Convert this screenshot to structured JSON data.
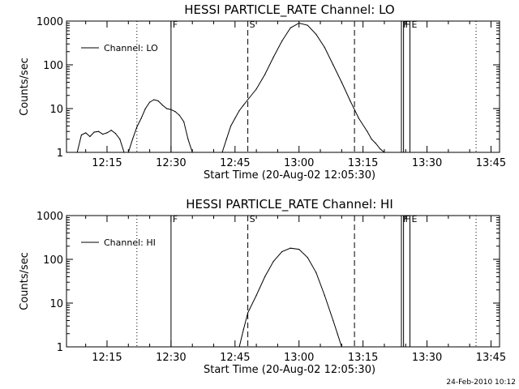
{
  "footer": {
    "stamp": "24-Feb-2010 10:12"
  },
  "chart_data": [
    {
      "type": "line",
      "title": "HESSI PARTICLE_RATE Channel: LO",
      "xlabel": "Start Time (20-Aug-02 12:05:30)",
      "ylabel": "Counts/sec",
      "x_unit": "time (hh:mm)",
      "xlim": [
        "12:05:30",
        "13:47:00"
      ],
      "ylim": [
        1,
        1000
      ],
      "yscale": "log",
      "x_ticks": [
        "12:15",
        "12:30",
        "12:45",
        "13:00",
        "13:15",
        "13:30",
        "13:45"
      ],
      "y_ticks": [
        "1",
        "10",
        "100",
        "1000"
      ],
      "grid": false,
      "legend": {
        "position": "top-left",
        "entries": [
          "Channel: LO"
        ]
      },
      "series": [
        {
          "name": "Channel: LO",
          "x": [
            "12:08:00",
            "12:09:00",
            "12:10:00",
            "12:11:00",
            "12:12:00",
            "12:13:00",
            "12:14:00",
            "12:15:00",
            "12:16:00",
            "12:17:00",
            "12:18:00",
            "12:19:00",
            "12:20:00",
            "12:21:00",
            "12:22:00",
            "12:23:00",
            "12:24:00",
            "12:25:00",
            "12:26:00",
            "12:27:00",
            "12:28:00",
            "12:29:00",
            "12:30:00",
            "12:31:00",
            "12:32:00",
            "12:33:00",
            "12:34:00",
            "12:35:00",
            "12:42:00",
            "12:43:00",
            "12:44:00",
            "12:45:00",
            "12:46:00",
            "12:47:00",
            "12:48:00",
            "12:50:00",
            "12:52:00",
            "12:54:00",
            "12:56:00",
            "12:58:00",
            "13:00:00",
            "13:02:00",
            "13:04:00",
            "13:06:00",
            "13:08:00",
            "13:10:00",
            "13:12:00",
            "13:14:00",
            "13:16:00",
            "13:17:00",
            "13:18:00",
            "13:19:00",
            "13:20:00"
          ],
          "y": [
            1,
            2.5,
            2.8,
            2.3,
            2.9,
            3.0,
            2.6,
            2.8,
            3.2,
            2.7,
            2.0,
            1.0,
            1.0,
            2.0,
            3.8,
            6.0,
            10,
            14,
            16,
            15,
            12,
            10,
            9.5,
            8.5,
            7.0,
            5.0,
            2.0,
            1.0,
            1.0,
            2.0,
            4.0,
            6.0,
            9.0,
            12,
            16,
            28,
            60,
            150,
            350,
            700,
            900,
            800,
            500,
            250,
            100,
            40,
            15,
            6,
            3,
            2,
            1.6,
            1.2,
            1.0
          ]
        }
      ],
      "annotations": [
        {
          "time": "12:22:00",
          "style": "dotted",
          "label": ""
        },
        {
          "time": "12:30:00",
          "style": "solid",
          "label": "F"
        },
        {
          "time": "12:48:00",
          "style": "dashed",
          "label": "S"
        },
        {
          "time": "13:13:00",
          "style": "dashed",
          "label": ""
        },
        {
          "time": "13:24:00",
          "style": "solid",
          "label": "F"
        },
        {
          "time": "13:24:30",
          "style": "solid",
          "label": "F"
        },
        {
          "time": "13:26:00",
          "style": "solid",
          "label": "E"
        },
        {
          "time": "13:41:30",
          "style": "dotted",
          "label": ""
        }
      ]
    },
    {
      "type": "line",
      "title": "HESSI PARTICLE_RATE Channel: HI",
      "xlabel": "Start Time (20-Aug-02 12:05:30)",
      "ylabel": "Counts/sec",
      "x_unit": "time (hh:mm)",
      "xlim": [
        "12:05:30",
        "13:47:00"
      ],
      "ylim": [
        1,
        1000
      ],
      "yscale": "log",
      "x_ticks": [
        "12:15",
        "12:30",
        "12:45",
        "13:00",
        "13:15",
        "13:30",
        "13:45"
      ],
      "y_ticks": [
        "1",
        "10",
        "100",
        "1000"
      ],
      "grid": false,
      "legend": {
        "position": "top-left",
        "entries": [
          "Channel: HI"
        ]
      },
      "series": [
        {
          "name": "Channel: HI",
          "x": [
            "12:46:00",
            "12:47:00",
            "12:48:00",
            "12:50:00",
            "12:52:00",
            "12:54:00",
            "12:56:00",
            "12:58:00",
            "13:00:00",
            "13:02:00",
            "13:04:00",
            "13:06:00",
            "13:08:00",
            "13:09:00",
            "13:10:00"
          ],
          "y": [
            1.0,
            2.5,
            6.0,
            15,
            40,
            90,
            150,
            180,
            170,
            110,
            50,
            15,
            4,
            2,
            1.0
          ]
        }
      ],
      "annotations": [
        {
          "time": "12:22:00",
          "style": "dotted",
          "label": ""
        },
        {
          "time": "12:30:00",
          "style": "solid",
          "label": "F"
        },
        {
          "time": "12:48:00",
          "style": "dashed",
          "label": "S"
        },
        {
          "time": "13:13:00",
          "style": "dashed",
          "label": ""
        },
        {
          "time": "13:24:00",
          "style": "solid",
          "label": "F"
        },
        {
          "time": "13:24:30",
          "style": "solid",
          "label": "F"
        },
        {
          "time": "13:26:00",
          "style": "solid",
          "label": "E"
        },
        {
          "time": "13:41:30",
          "style": "dotted",
          "label": ""
        }
      ]
    }
  ]
}
